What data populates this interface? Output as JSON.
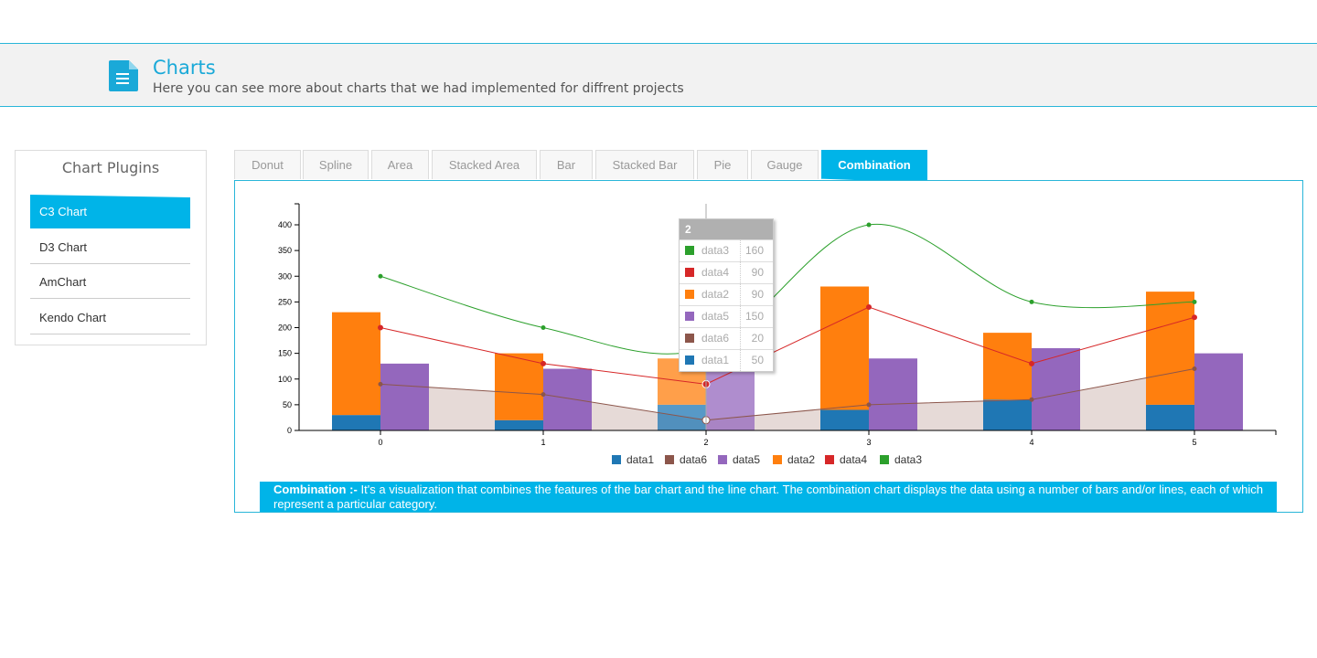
{
  "header": {
    "title": "Charts",
    "subtitle": "Here you can see more about charts that we had implemented for diffrent projects",
    "icon": "document-icon"
  },
  "sidebar": {
    "title": "Chart Plugins",
    "items": [
      {
        "label": "C3 Chart",
        "active": true
      },
      {
        "label": "D3 Chart",
        "active": false
      },
      {
        "label": "AmChart",
        "active": false
      },
      {
        "label": "Kendo Chart",
        "active": false
      }
    ]
  },
  "tabs": [
    {
      "label": "Donut"
    },
    {
      "label": "Spline"
    },
    {
      "label": "Area"
    },
    {
      "label": "Stacked Area"
    },
    {
      "label": "Bar"
    },
    {
      "label": "Stacked Bar"
    },
    {
      "label": "Pie"
    },
    {
      "label": "Gauge"
    },
    {
      "label": "Combination",
      "active": true
    }
  ],
  "description": {
    "title": "Combination :-",
    "text": " It's a visualization that combines the features of the bar chart and the line chart. The combination chart displays the data using a number of bars and/or lines, each of which represent a particular category."
  },
  "tooltip": {
    "title": "2",
    "rows": [
      {
        "name": "data3",
        "value": "160",
        "color": "#2ca02c"
      },
      {
        "name": "data4",
        "value": "90",
        "color": "#d62728"
      },
      {
        "name": "data2",
        "value": "90",
        "color": "#ff7f0e"
      },
      {
        "name": "data5",
        "value": "150",
        "color": "#9467bd"
      },
      {
        "name": "data6",
        "value": "20",
        "color": "#8c564b"
      },
      {
        "name": "data1",
        "value": "50",
        "color": "#1f77b4"
      }
    ]
  },
  "chart_data": {
    "type": "combination",
    "x": [
      0,
      1,
      2,
      3,
      4,
      5
    ],
    "ylim": [
      0,
      400
    ],
    "yticks": [
      0,
      50,
      100,
      150,
      200,
      250,
      300,
      350,
      400
    ],
    "series": [
      {
        "name": "data1",
        "kind": "bar",
        "stack": "a",
        "color": "#1f77b4",
        "values": [
          30,
          20,
          50,
          40,
          60,
          50
        ]
      },
      {
        "name": "data2",
        "kind": "bar",
        "stack": "a",
        "color": "#ff7f0e",
        "values": [
          200,
          130,
          90,
          240,
          130,
          220
        ]
      },
      {
        "name": "data5",
        "kind": "bar",
        "stack": "b",
        "color": "#9467bd",
        "values": [
          130,
          120,
          150,
          140,
          160,
          150
        ]
      },
      {
        "name": "data6",
        "kind": "area",
        "color": "#8c564b",
        "values": [
          90,
          70,
          20,
          50,
          60,
          120
        ]
      },
      {
        "name": "data4",
        "kind": "line",
        "color": "#d62728",
        "values": [
          200,
          130,
          90,
          240,
          130,
          220
        ]
      },
      {
        "name": "data3",
        "kind": "spline",
        "color": "#2ca02c",
        "values": [
          300,
          200,
          160,
          400,
          250,
          250
        ]
      }
    ],
    "legend": [
      "data1",
      "data6",
      "data5",
      "data2",
      "data4",
      "data3"
    ],
    "legend_position": "bottom",
    "highlight_index": 2
  }
}
